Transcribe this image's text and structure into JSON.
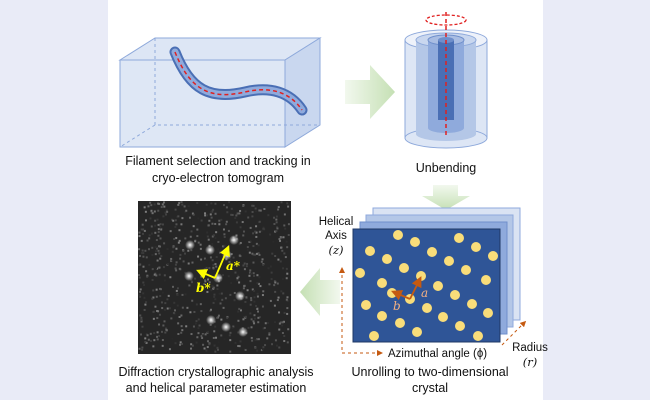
{
  "steps": {
    "filament": {
      "line1": "Filament selection and tracking in",
      "line2": "cryo-electron tomogram"
    },
    "unbending": {
      "label": "Unbending"
    },
    "unrolling": {
      "line1": "Unrolling to two-dimensional",
      "line2": "crystal"
    },
    "diffraction": {
      "line1": "Diffraction crystallographic analysis",
      "line2": "and helical parameter estimation"
    }
  },
  "axes": {
    "helical_line1": "Helical",
    "helical_line2": "Axis",
    "helical_symbol": "(z)",
    "azimuthal": "Azimuthal angle (ϕ)",
    "radius_line1": "Radius",
    "radius_symbol": "(r)"
  },
  "lattice": {
    "a": "a",
    "b": "b",
    "a_star": "a*",
    "b_star": "b*"
  },
  "colors": {
    "crystal": "#2f5597",
    "spot": "#f9dd7a",
    "arrow": "#c55a11",
    "flow_arrow": "#c5e0b4",
    "reciprocal": "#ffff00"
  }
}
